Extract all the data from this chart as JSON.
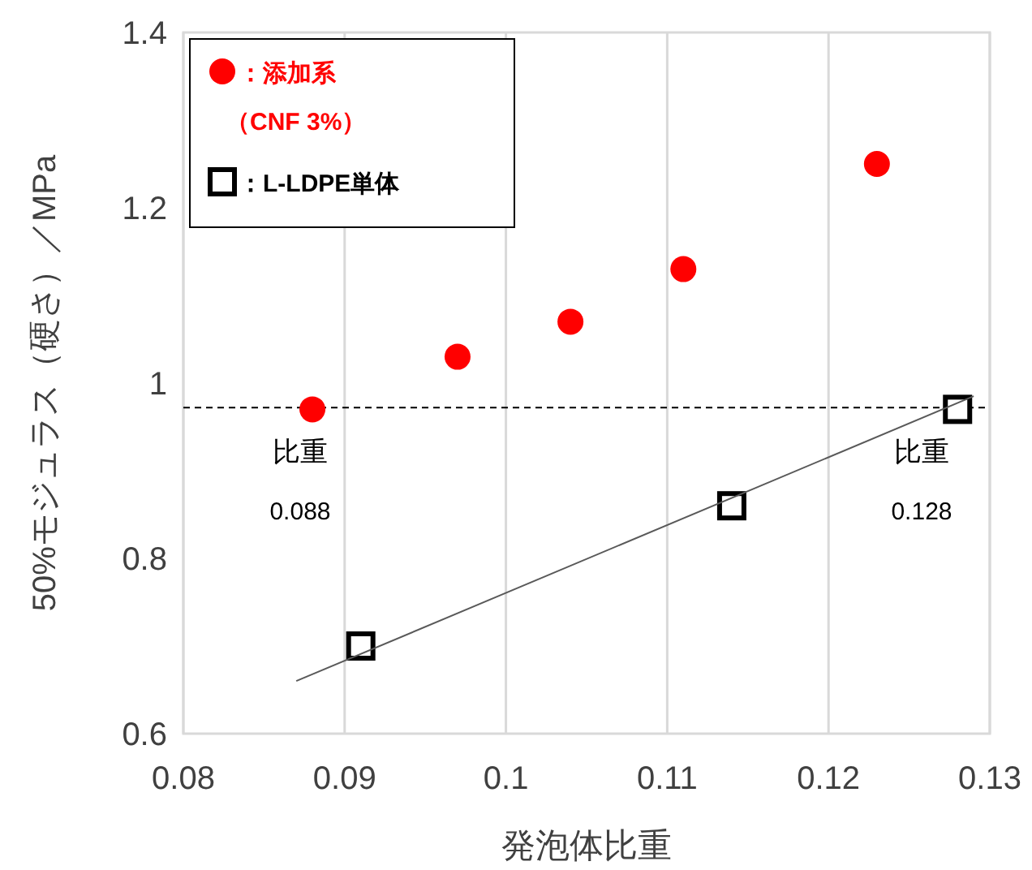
{
  "chart_data": {
    "type": "scatter",
    "xlabel": "発泡体比重",
    "ylabel": "50%モジュラス（硬さ）／MPa",
    "xlim": [
      0.08,
      0.13
    ],
    "xticks": [
      0.08,
      0.09,
      0.1,
      0.11,
      0.12,
      0.13
    ],
    "ylim": [
      0.6,
      1.4
    ],
    "yticks": [
      0.6,
      0.8,
      1,
      1.2,
      1.4
    ],
    "grid": "x",
    "legend": "top left",
    "series": [
      {
        "name": "：添加系（CNF 3%）",
        "color": "#ff0000",
        "marker": "circle",
        "x": [
          0.088,
          0.097,
          0.104,
          0.111,
          0.123
        ],
        "values": [
          0.97,
          1.03,
          1.07,
          1.13,
          1.25
        ]
      },
      {
        "name": "：L-LDPE単体",
        "color": "#000000",
        "marker": "square",
        "x": [
          0.091,
          0.114,
          0.128
        ],
        "values": [
          0.7,
          0.86,
          0.97
        ]
      },
      {
        "type": "line",
        "color": "#595959",
        "marker": "none",
        "x": [
          0.087,
          0.129
        ],
        "values": [
          0.66,
          0.985
        ]
      }
    ],
    "ref_lines": [
      {
        "axis": "y",
        "value": 0.972,
        "color": "#000000",
        "line_style": "dashed"
      }
    ],
    "annotations": [
      "比重",
      "0.088",
      "比重",
      "0.128"
    ]
  }
}
